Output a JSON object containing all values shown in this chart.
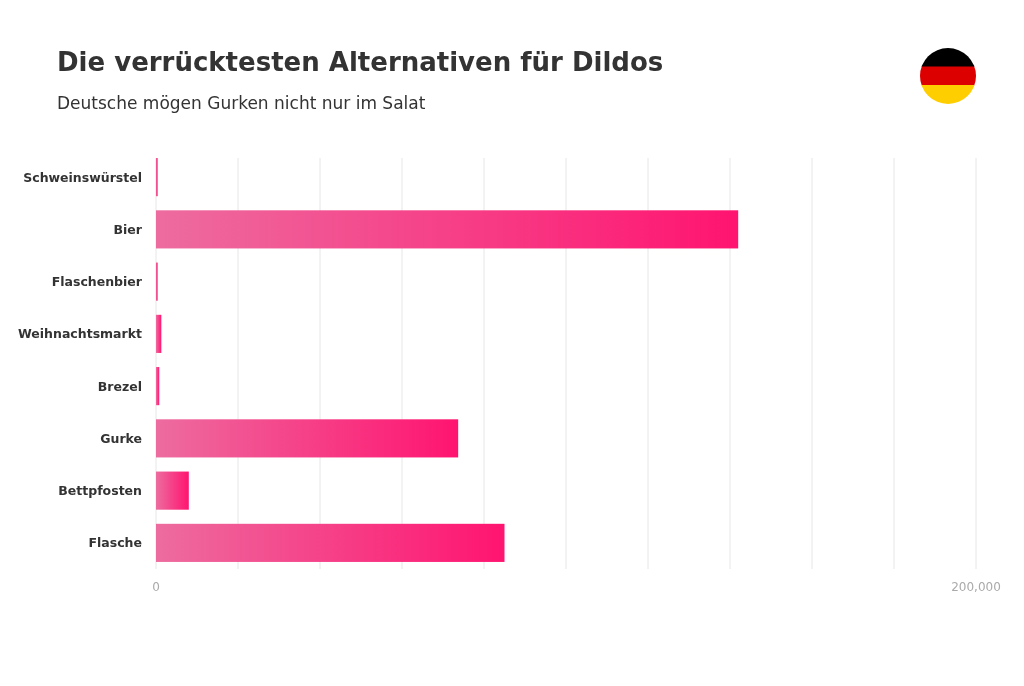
{
  "chart_data": {
    "type": "bar",
    "orientation": "horizontal",
    "title": "Die verrücktesten Alternativen für Dildos",
    "subtitle": "Deutsche mögen Gurken nicht nur im Salat",
    "categories": [
      "Schweinswürstel",
      "Bier",
      "Flaschenbier",
      "Weihnachtsmarkt",
      "Brezel",
      "Gurke",
      "Bettpfosten",
      "Flasche"
    ],
    "values": [
      400,
      142000,
      400,
      1300,
      800,
      73700,
      8000,
      85000
    ],
    "color": "#ff1470",
    "xlim": [
      0,
      200000
    ],
    "xticks": [
      0,
      {
        "value": 20000,
        "label": null
      },
      {
        "value": 40000,
        "label": null
      },
      {
        "value": 60000,
        "label": null
      },
      {
        "value": 80000,
        "label": null
      },
      {
        "value": 100000,
        "label": null
      },
      {
        "value": 120000,
        "label": null
      },
      {
        "value": 140000,
        "label": null
      },
      {
        "value": 160000,
        "label": null
      },
      {
        "value": 180000,
        "label": null
      },
      {
        "value": 200000,
        "label": "200,000"
      }
    ],
    "grid": "x"
  }
}
